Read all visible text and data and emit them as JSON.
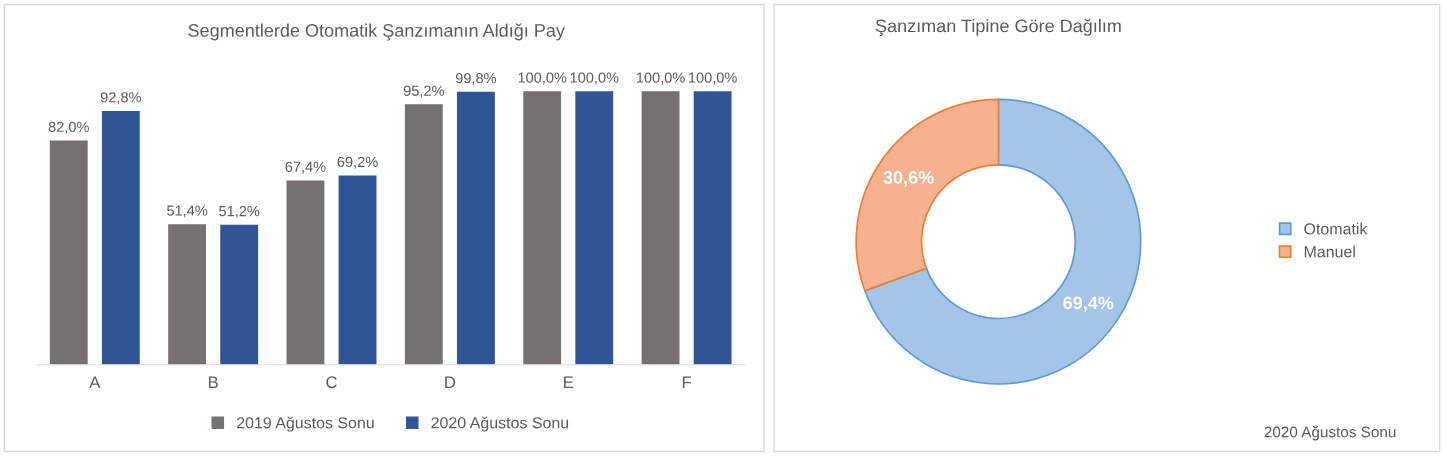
{
  "chart_data": [
    {
      "type": "bar",
      "title": "Segmentlerde Otomatik Şanzımanın Aldığı Pay",
      "categories": [
        "A",
        "B",
        "C",
        "D",
        "E",
        "F"
      ],
      "legend": "bottom",
      "series": [
        {
          "name": "2019 Ağustos Sonu",
          "color": "#767171",
          "values": [
            82.0,
            51.4,
            67.4,
            95.2,
            100.0,
            100.0
          ],
          "value_labels": [
            "82,0%",
            "51,4%",
            "67,4%",
            "95,2%",
            "100,0%",
            "100,0%"
          ]
        },
        {
          "name": "2020 Ağustos Sonu",
          "color": "#2f5597",
          "values": [
            92.8,
            51.2,
            69.2,
            99.8,
            100.0,
            100.0
          ],
          "value_labels": [
            "92,8%",
            "51,2%",
            "69,2%",
            "99,8%",
            "100,0%",
            "100,0%"
          ]
        }
      ]
    },
    {
      "type": "donut",
      "title": "Şanzıman Tipine Göre Dağılım",
      "categories": [
        "Otomatik",
        "Manuel"
      ],
      "values": [
        69.4,
        30.6
      ],
      "colors": [
        "#a4c4e8",
        "#f6b28e"
      ],
      "value_labels": [
        "69,4%",
        "30,6%"
      ],
      "legend": "right",
      "annotations": [
        "2020 Ağustos Sonu"
      ]
    }
  ]
}
